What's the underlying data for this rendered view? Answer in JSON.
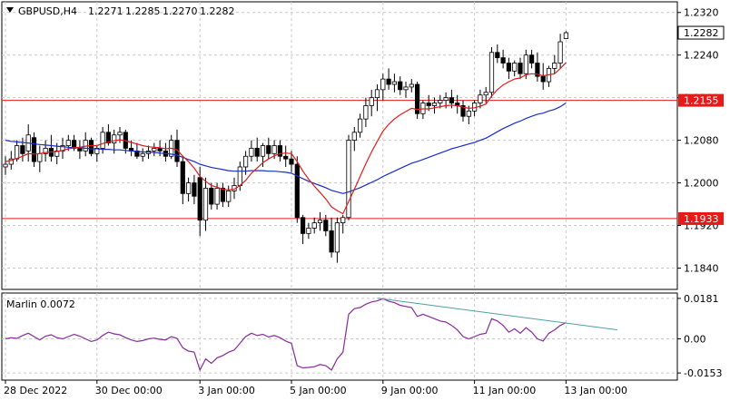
{
  "header": {
    "symbol": "GBPUSD,H4",
    "open": "1.2271",
    "high": "1.2285",
    "low": "1.2270",
    "close": "1.2282"
  },
  "colors": {
    "bull": "#ffffff",
    "bear": "#000000",
    "fast_ma": "#e31b1b",
    "slow_ma": "#1a2ec8",
    "hline": "#e31b1b",
    "indicator": "#8a2a9e",
    "trendline": "#4fa0a0",
    "grid": "#c8c8c8"
  },
  "chart_data": [
    {
      "type": "candlestick",
      "name": "price",
      "ylim": [
        1.18,
        1.234
      ],
      "y_ticks": [
        "1.2320",
        "1.2240",
        "1.2160",
        "1.2080",
        "1.2000",
        "1.1920",
        "1.1840"
      ],
      "x_ticks": [
        {
          "label": "28 Dec 2022",
          "index": 0
        },
        {
          "label": "30 Dec 00:00",
          "index": 16
        },
        {
          "label": "3 Jan 00:00",
          "index": 34
        },
        {
          "label": "5 Jan 00:00",
          "index": 50
        },
        {
          "label": "9 Jan 00:00",
          "index": 66
        },
        {
          "label": "11 Jan 00:00",
          "index": 82
        },
        {
          "label": "13 Jan 00:00",
          "index": 98
        }
      ],
      "candles": [
        [
          1.203,
          1.205,
          1.2015,
          1.2035
        ],
        [
          1.2035,
          1.206,
          1.2025,
          1.2045
        ],
        [
          1.2045,
          1.208,
          1.204,
          1.207
        ],
        [
          1.207,
          1.2085,
          1.204,
          1.2055
        ],
        [
          1.206,
          1.211,
          1.204,
          1.209
        ],
        [
          1.2085,
          1.2095,
          1.203,
          1.204
        ],
        [
          1.204,
          1.207,
          1.202,
          1.2055
        ],
        [
          1.2055,
          1.208,
          1.204,
          1.2065
        ],
        [
          1.2065,
          1.209,
          1.204,
          1.205
        ],
        [
          1.205,
          1.2075,
          1.2035,
          1.206
        ],
        [
          1.206,
          1.2085,
          1.2045,
          1.207
        ],
        [
          1.207,
          1.209,
          1.206,
          1.208
        ],
        [
          1.208,
          1.209,
          1.206,
          1.2065
        ],
        [
          1.2065,
          1.208,
          1.2045,
          1.206
        ],
        [
          1.206,
          1.2095,
          1.205,
          1.208
        ],
        [
          1.208,
          1.2085,
          1.205,
          1.2055
        ],
        [
          1.2055,
          1.207,
          1.204,
          1.2065
        ],
        [
          1.2065,
          1.2105,
          1.2055,
          1.2095
        ],
        [
          1.2095,
          1.211,
          1.207,
          1.2075
        ],
        [
          1.2075,
          1.21,
          1.2055,
          1.209
        ],
        [
          1.209,
          1.2105,
          1.2075,
          1.2095
        ],
        [
          1.2095,
          1.21,
          1.2055,
          1.2065
        ],
        [
          1.2065,
          1.208,
          1.205,
          1.206
        ],
        [
          1.206,
          1.2075,
          1.2045,
          1.205
        ],
        [
          1.205,
          1.2065,
          1.204,
          1.2055
        ],
        [
          1.2055,
          1.207,
          1.2045,
          1.206
        ],
        [
          1.206,
          1.2075,
          1.205,
          1.2065
        ],
        [
          1.2065,
          1.208,
          1.205,
          1.206
        ],
        [
          1.206,
          1.2075,
          1.204,
          1.205
        ],
        [
          1.205,
          1.209,
          1.2045,
          1.208
        ],
        [
          1.208,
          1.21,
          1.203,
          1.204
        ],
        [
          1.204,
          1.205,
          1.196,
          1.198
        ],
        [
          1.198,
          1.201,
          1.1965,
          1.2
        ],
        [
          1.2,
          1.2015,
          1.196,
          1.1975
        ],
        [
          1.201,
          1.203,
          1.19,
          1.193
        ],
        [
          1.193,
          1.201,
          1.191,
          1.199
        ],
        [
          1.199,
          1.2,
          1.195,
          1.196
        ],
        [
          1.196,
          1.2,
          1.195,
          1.199
        ],
        [
          1.199,
          1.2,
          1.1955,
          1.1965
        ],
        [
          1.1965,
          1.1995,
          1.1955,
          1.1985
        ],
        [
          1.1985,
          1.201,
          1.197,
          1.1995
        ],
        [
          1.1995,
          1.204,
          1.1985,
          1.203
        ],
        [
          1.203,
          1.206,
          1.2015,
          1.205
        ],
        [
          1.205,
          1.208,
          1.204,
          1.2065
        ],
        [
          1.2065,
          1.2085,
          1.204,
          1.205
        ],
        [
          1.205,
          1.2075,
          1.203,
          1.207
        ],
        [
          1.207,
          1.2085,
          1.2045,
          1.2055
        ],
        [
          1.2055,
          1.208,
          1.2045,
          1.207
        ],
        [
          1.207,
          1.208,
          1.204,
          1.205
        ],
        [
          1.205,
          1.207,
          1.203,
          1.2045
        ],
        [
          1.2045,
          1.206,
          1.202,
          1.2035
        ],
        [
          1.2035,
          1.205,
          1.1925,
          1.1935
        ],
        [
          1.1935,
          1.194,
          1.1885,
          1.1905
        ],
        [
          1.1905,
          1.1925,
          1.1895,
          1.1915
        ],
        [
          1.1915,
          1.1935,
          1.1905,
          1.1925
        ],
        [
          1.1925,
          1.1945,
          1.191,
          1.193
        ],
        [
          1.193,
          1.194,
          1.19,
          1.191
        ],
        [
          1.191,
          1.1935,
          1.186,
          1.187
        ],
        [
          1.187,
          1.1935,
          1.185,
          1.1925
        ],
        [
          1.1925,
          1.194,
          1.1905,
          1.1935
        ],
        [
          1.1935,
          1.209,
          1.193,
          1.208
        ],
        [
          1.208,
          1.2105,
          1.206,
          1.2095
        ],
        [
          1.2095,
          1.213,
          1.2085,
          1.212
        ],
        [
          1.212,
          1.216,
          1.2105,
          1.2145
        ],
        [
          1.2145,
          1.2175,
          1.2125,
          1.216
        ],
        [
          1.216,
          1.2185,
          1.2135,
          1.2175
        ],
        [
          1.2175,
          1.2205,
          1.2155,
          1.2195
        ],
        [
          1.2195,
          1.2215,
          1.2175,
          1.2185
        ],
        [
          1.2185,
          1.2205,
          1.217,
          1.219
        ],
        [
          1.219,
          1.22,
          1.2165,
          1.2175
        ],
        [
          1.2175,
          1.219,
          1.216,
          1.218
        ],
        [
          1.218,
          1.2195,
          1.217,
          1.2185
        ],
        [
          1.2185,
          1.219,
          1.212,
          1.213
        ],
        [
          1.213,
          1.2155,
          1.212,
          1.215
        ],
        [
          1.215,
          1.2165,
          1.2135,
          1.2145
        ],
        [
          1.2145,
          1.216,
          1.213,
          1.215
        ],
        [
          1.215,
          1.2165,
          1.214,
          1.2155
        ],
        [
          1.2155,
          1.217,
          1.214,
          1.216
        ],
        [
          1.216,
          1.2175,
          1.214,
          1.215
        ],
        [
          1.215,
          1.2165,
          1.213,
          1.2145
        ],
        [
          1.2145,
          1.2155,
          1.2115,
          1.2125
        ],
        [
          1.2125,
          1.2145,
          1.211,
          1.2135
        ],
        [
          1.2135,
          1.2155,
          1.2125,
          1.215
        ],
        [
          1.215,
          1.2175,
          1.214,
          1.2165
        ],
        [
          1.2165,
          1.218,
          1.215,
          1.217
        ],
        [
          1.217,
          1.2255,
          1.216,
          1.2245
        ],
        [
          1.2245,
          1.226,
          1.2225,
          1.2235
        ],
        [
          1.2235,
          1.225,
          1.2215,
          1.2225
        ],
        [
          1.2225,
          1.2235,
          1.2195,
          1.221
        ],
        [
          1.221,
          1.223,
          1.22,
          1.2225
        ],
        [
          1.2225,
          1.2235,
          1.2195,
          1.2205
        ],
        [
          1.2205,
          1.225,
          1.2195,
          1.224
        ],
        [
          1.224,
          1.225,
          1.2215,
          1.2225
        ],
        [
          1.2225,
          1.2245,
          1.219,
          1.22
        ],
        [
          1.22,
          1.2225,
          1.2175,
          1.219
        ],
        [
          1.219,
          1.222,
          1.218,
          1.2215
        ],
        [
          1.2215,
          1.224,
          1.2205,
          1.2225
        ],
        [
          1.2225,
          1.228,
          1.2215,
          1.2265
        ],
        [
          1.2271,
          1.2285,
          1.227,
          1.2282
        ]
      ],
      "fast_ma": [
        1.204,
        1.2042,
        1.2046,
        1.205,
        1.2055,
        1.2054,
        1.2055,
        1.2057,
        1.2058,
        1.2059,
        1.2061,
        1.2064,
        1.2066,
        1.2067,
        1.2069,
        1.207,
        1.207,
        1.2074,
        1.2077,
        1.2079,
        1.2081,
        1.2079,
        1.2076,
        1.2073,
        1.207,
        1.2068,
        1.2067,
        1.2066,
        1.2064,
        1.2065,
        1.2062,
        1.205,
        1.204,
        1.2028,
        1.2012,
        1.2003,
        1.1995,
        1.1992,
        1.1988,
        1.1987,
        1.1988,
        1.1995,
        1.2005,
        1.2018,
        1.2028,
        1.2038,
        1.2045,
        1.2051,
        1.2055,
        1.2056,
        1.2055,
        1.204,
        1.2022,
        1.2007,
        1.1994,
        1.1982,
        1.197,
        1.1955,
        1.1948,
        1.1942,
        1.1965,
        1.1988,
        1.2012,
        1.2036,
        1.2058,
        1.2078,
        1.2097,
        1.211,
        1.212,
        1.2128,
        1.2134,
        1.214,
        1.2138,
        1.2139,
        1.2139,
        1.2141,
        1.2143,
        1.2145,
        1.2146,
        1.2145,
        1.2142,
        1.214,
        1.2141,
        1.2144,
        1.2148,
        1.2163,
        1.2175,
        1.2184,
        1.219,
        1.2195,
        1.2197,
        1.2203,
        1.2205,
        1.2204,
        1.2201,
        1.2203,
        1.2205,
        1.2215,
        1.2226
      ],
      "slow_ma": [
        1.208,
        1.2078,
        1.2077,
        1.2076,
        1.2075,
        1.2073,
        1.2072,
        1.2071,
        1.207,
        1.2069,
        1.2068,
        1.2067,
        1.2066,
        1.2066,
        1.2065,
        1.2064,
        1.2064,
        1.2063,
        1.2063,
        1.2062,
        1.2062,
        1.2061,
        1.206,
        1.2059,
        1.2058,
        1.2058,
        1.2057,
        1.2056,
        1.2055,
        1.2054,
        1.2052,
        1.2048,
        1.2044,
        1.204,
        1.2035,
        1.2032,
        1.2029,
        1.2027,
        1.2025,
        1.2023,
        1.2022,
        1.2022,
        1.2022,
        1.2023,
        1.2023,
        1.2023,
        1.2022,
        1.2022,
        1.2021,
        1.202,
        1.2018,
        1.2013,
        1.2008,
        1.2003,
        1.1999,
        1.1995,
        1.1991,
        1.1986,
        1.1983,
        1.198,
        1.1983,
        1.1987,
        1.1991,
        1.1996,
        1.2001,
        1.2006,
        1.2012,
        1.2017,
        1.2022,
        1.2027,
        1.2032,
        1.2037,
        1.204,
        1.2044,
        1.2048,
        1.2052,
        1.2056,
        1.206,
        1.2064,
        1.2067,
        1.207,
        1.2073,
        1.2076,
        1.208,
        1.2084,
        1.209,
        1.2096,
        1.2102,
        1.2107,
        1.2112,
        1.2116,
        1.2121,
        1.2125,
        1.2129,
        1.2131,
        1.2135,
        1.2138,
        1.2143,
        1.215
      ],
      "hlines": [
        {
          "value": 1.2155,
          "label": "1.2155"
        },
        {
          "value": 1.1933,
          "label": "1.1933"
        }
      ],
      "current_price": {
        "value": 1.2282,
        "label": "1.2282"
      }
    },
    {
      "type": "line",
      "name": "Marlin 0.0072",
      "ylim": [
        -0.0185,
        0.0205
      ],
      "y_ticks": [
        "0.0181",
        "0.00",
        "-0.0153"
      ],
      "values": [
        0.0,
        0.0005,
        0.0002,
        0.0015,
        0.0025,
        0.001,
        -0.0005,
        0.0012,
        0.0018,
        0.0005,
        0.0,
        0.001,
        0.002,
        0.0012,
        0.0,
        -0.0012,
        -0.0005,
        0.0015,
        0.003,
        0.0022,
        0.0018,
        0.0005,
        -0.0005,
        -0.0012,
        -0.0008,
        0.0,
        0.0003,
        -0.0002,
        -0.0005,
        0.001,
        0.0002,
        -0.004,
        -0.0055,
        -0.006,
        -0.014,
        -0.009,
        -0.011,
        -0.0085,
        -0.0075,
        -0.006,
        -0.005,
        -0.002,
        0.001,
        0.0025,
        0.0015,
        0.002,
        0.0008,
        0.0015,
        0.0005,
        -0.001,
        -0.002,
        -0.012,
        -0.013,
        -0.0128,
        -0.0125,
        -0.0115,
        -0.012,
        -0.014,
        -0.009,
        -0.006,
        0.011,
        0.0135,
        0.014,
        0.0155,
        0.0165,
        0.017,
        0.018,
        0.0168,
        0.0162,
        0.015,
        0.0145,
        0.014,
        0.01,
        0.011,
        0.01,
        0.009,
        0.008,
        0.0075,
        0.006,
        0.004,
        0.001,
        0.0,
        0.001,
        0.002,
        0.0025,
        0.009,
        0.008,
        0.006,
        0.003,
        0.0045,
        0.0025,
        0.005,
        0.003,
        0.0,
        -0.001,
        0.0025,
        0.004,
        0.006,
        0.0072
      ],
      "trendline": {
        "from": [
          65,
          0.0182
        ],
        "to": [
          107,
          0.004
        ]
      }
    }
  ]
}
